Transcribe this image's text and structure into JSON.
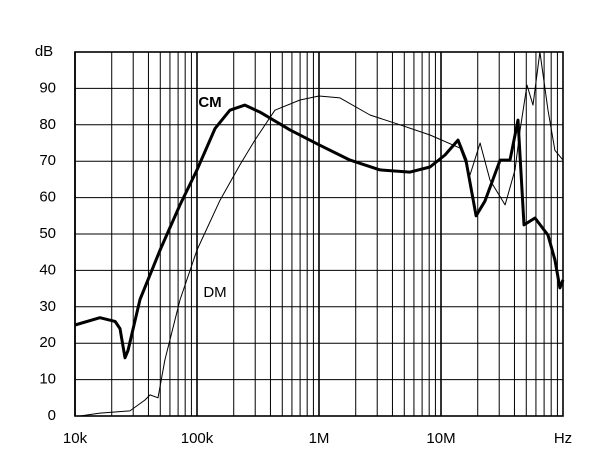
{
  "chart_data": {
    "type": "line",
    "ylabel": "dB",
    "xlabel": "Hz",
    "log_x": true,
    "grid": true,
    "xlim": [
      10000,
      100000000
    ],
    "xticks": [
      {
        "value": 10000,
        "label": "10k"
      },
      {
        "value": 100000,
        "label": "100k"
      },
      {
        "value": 1000000,
        "label": "1M"
      },
      {
        "value": 10000000,
        "label": "10M"
      }
    ],
    "xminor": [
      20000,
      30000,
      40000,
      50000,
      60000,
      70000,
      80000,
      90000,
      200000,
      300000,
      400000,
      500000,
      600000,
      700000,
      800000,
      900000,
      2000000,
      3000000,
      4000000,
      5000000,
      6000000,
      7000000,
      8000000,
      9000000,
      20000000,
      30000000,
      40000000,
      50000000,
      60000000,
      70000000,
      80000000,
      90000000
    ],
    "ylim": [
      0,
      100
    ],
    "yticks": [
      0,
      10,
      20,
      30,
      40,
      50,
      60,
      70,
      80,
      90
    ],
    "series": [
      {
        "name": "CM",
        "color": "#000000",
        "line_width": 3,
        "x": [
          10000,
          16000,
          21300,
          23400,
          25700,
          27200,
          34100,
          49800,
          72600,
          100000,
          140600,
          186000,
          247000,
          328000,
          578000,
          1000000,
          1795000,
          3160000,
          5570000,
          8130000,
          10790000,
          13780000,
          16000000,
          19400000,
          22900000,
          30500000,
          36800000,
          42800000,
          47900000,
          58900000,
          75300000,
          85900000,
          94400000,
          100000000
        ],
        "values": [
          25,
          27,
          26,
          24,
          16,
          18,
          32,
          45.6,
          58,
          67.6,
          79,
          84,
          85.4,
          83.5,
          78.6,
          74.5,
          70.3,
          67.6,
          67,
          68.4,
          71.7,
          75.8,
          70.3,
          55,
          59,
          70.3,
          70.3,
          81.3,
          52.5,
          54.4,
          49.7,
          42.9,
          35.2,
          37.4
        ]
      },
      {
        "name": "DM",
        "color": "#000000",
        "line_width": 1,
        "x": [
          11000,
          16000,
          28200,
          37500,
          41200,
          47900,
          54600,
          72600,
          100000,
          154600,
          225000,
          298000,
          435000,
          698000,
          1000000,
          1486000,
          2620000,
          4610000,
          8130000,
          14300000,
          17300000,
          20900000,
          25200000,
          33500000,
          40400000,
          44500000,
          50700000,
          56800000,
          64700000,
          75300000,
          85900000,
          100000000
        ],
        "values": [
          0,
          0.8,
          1.4,
          4.4,
          5.8,
          5,
          15.4,
          31.9,
          45.6,
          59.3,
          69,
          75.8,
          84,
          86.8,
          87.9,
          87.4,
          82.7,
          80,
          77.2,
          73.6,
          66.2,
          75,
          64.8,
          58,
          67.6,
          78.6,
          90.9,
          85.4,
          100,
          84,
          73,
          70.3
        ]
      }
    ]
  }
}
